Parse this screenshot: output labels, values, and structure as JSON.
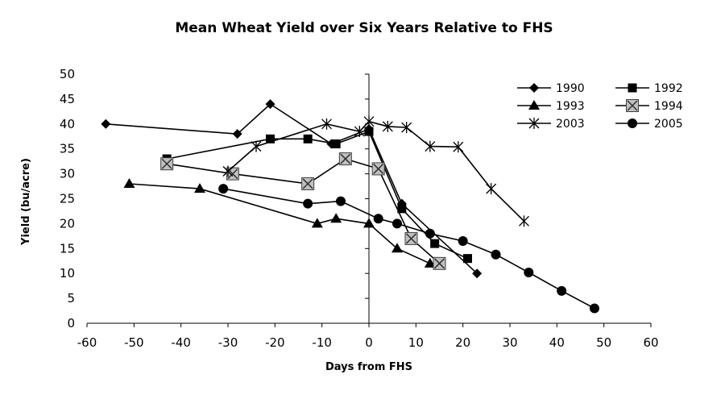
{
  "chart_data": {
    "type": "line",
    "title": "Mean Wheat Yield over Six Years Relative to FHS",
    "xlabel": "Days from FHS",
    "ylabel": "Yield (bu/acre)",
    "xlim": [
      -60,
      60
    ],
    "ylim": [
      0,
      50
    ],
    "xticks": [
      -60,
      -50,
      -40,
      -30,
      -20,
      -10,
      0,
      10,
      20,
      30,
      40,
      50,
      60
    ],
    "yticks": [
      0,
      5,
      10,
      15,
      20,
      25,
      30,
      35,
      40,
      45,
      50
    ],
    "grid": false,
    "legend_position": "top-right",
    "series": [
      {
        "name": "1990",
        "marker": "diamond",
        "color": "#000000",
        "points": [
          [
            -56,
            40
          ],
          [
            -28,
            38
          ],
          [
            -21,
            44
          ],
          [
            -8,
            36
          ],
          [
            0,
            39
          ],
          [
            7,
            24
          ],
          [
            23,
            10
          ]
        ]
      },
      {
        "name": "1992",
        "marker": "square",
        "color": "#000000",
        "points": [
          [
            -43,
            33
          ],
          [
            -21,
            37
          ],
          [
            -13,
            37
          ],
          [
            -7,
            36
          ],
          [
            0,
            38.5
          ],
          [
            7,
            23
          ],
          [
            14,
            16
          ],
          [
            21,
            13
          ]
        ]
      },
      {
        "name": "1993",
        "marker": "triangle",
        "color": "#000000",
        "points": [
          [
            -51,
            28
          ],
          [
            -36,
            27
          ],
          [
            -11,
            20
          ],
          [
            -7,
            21
          ],
          [
            0,
            20
          ],
          [
            6,
            15
          ],
          [
            13,
            12
          ]
        ]
      },
      {
        "name": "1994",
        "marker": "xbox",
        "color": "#000000",
        "points": [
          [
            -43,
            32
          ],
          [
            -29,
            30
          ],
          [
            -13,
            28
          ],
          [
            -5,
            33
          ],
          [
            2,
            31
          ],
          [
            9,
            17
          ],
          [
            15,
            12
          ]
        ]
      },
      {
        "name": "2003",
        "marker": "star",
        "color": "#000000",
        "points": [
          [
            -30,
            30.5
          ],
          [
            -24,
            35.5
          ],
          [
            -9,
            40
          ],
          [
            -2,
            38.5
          ],
          [
            0,
            40.5
          ],
          [
            4,
            39.5
          ],
          [
            8,
            39.3
          ],
          [
            13,
            35.5
          ],
          [
            19,
            35.4
          ],
          [
            26,
            27
          ],
          [
            33,
            20.5
          ]
        ]
      },
      {
        "name": "2005",
        "marker": "circle",
        "color": "#000000",
        "points": [
          [
            -31,
            27
          ],
          [
            -13,
            24
          ],
          [
            -6,
            24.5
          ],
          [
            2,
            21
          ],
          [
            6,
            20
          ],
          [
            13,
            18
          ],
          [
            20,
            16.5
          ],
          [
            27,
            13.8
          ],
          [
            34,
            10.2
          ],
          [
            41,
            6.5
          ],
          [
            48,
            3
          ]
        ]
      }
    ]
  }
}
